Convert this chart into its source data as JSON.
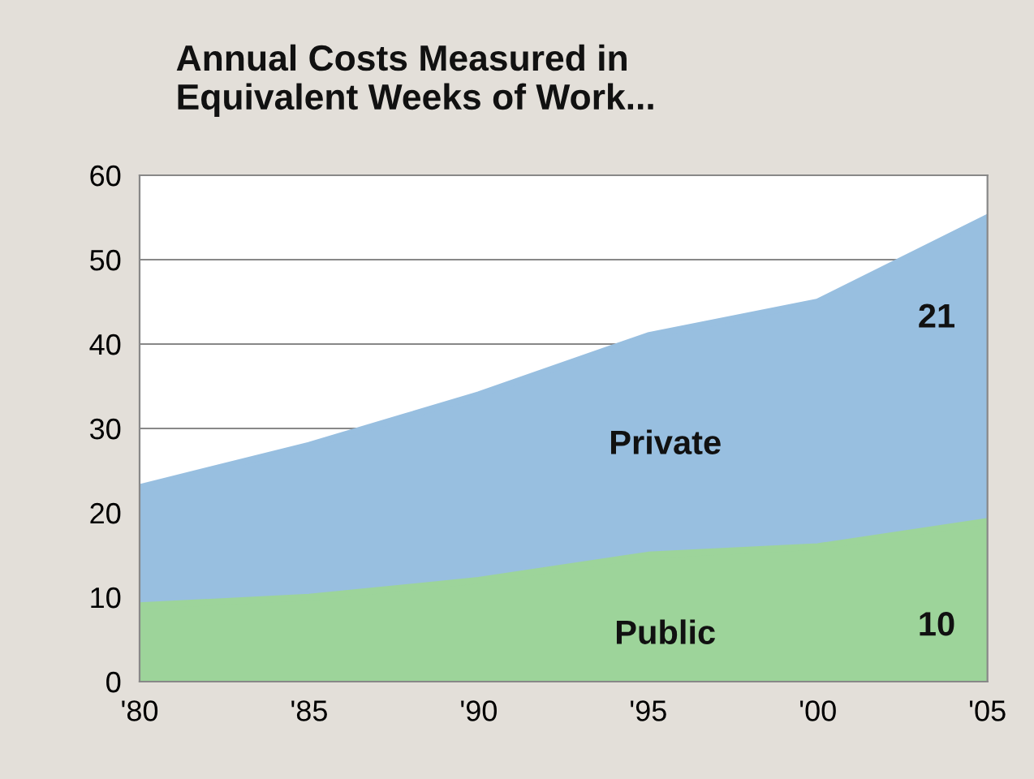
{
  "chart_data": {
    "type": "area",
    "stacked": true,
    "title": "Annual Costs Measured in\nEquivalent Weeks of Work...",
    "x": [
      1980,
      1985,
      1990,
      1995,
      2000,
      2005
    ],
    "series": [
      {
        "name": "Public",
        "color": "#9dd49a",
        "values": [
          9,
          10,
          12,
          15,
          16,
          19
        ]
      },
      {
        "name": "Private",
        "color": "#98bfe0",
        "values": [
          14,
          18,
          22,
          26,
          29,
          36
        ]
      }
    ],
    "xlim": [
      1980,
      2005
    ],
    "xticks": [
      {
        "value": 1980,
        "label": "'80"
      },
      {
        "value": 1985,
        "label": "'85"
      },
      {
        "value": 1990,
        "label": "'90"
      },
      {
        "value": 1995,
        "label": "'95"
      },
      {
        "value": 2000,
        "label": "'00"
      },
      {
        "value": 2005,
        "label": "'05"
      }
    ],
    "ylim": [
      0,
      60
    ],
    "yticks": [
      0,
      10,
      20,
      30,
      40,
      50,
      60
    ],
    "grid": "y",
    "annotations": [
      "21",
      "10"
    ]
  }
}
